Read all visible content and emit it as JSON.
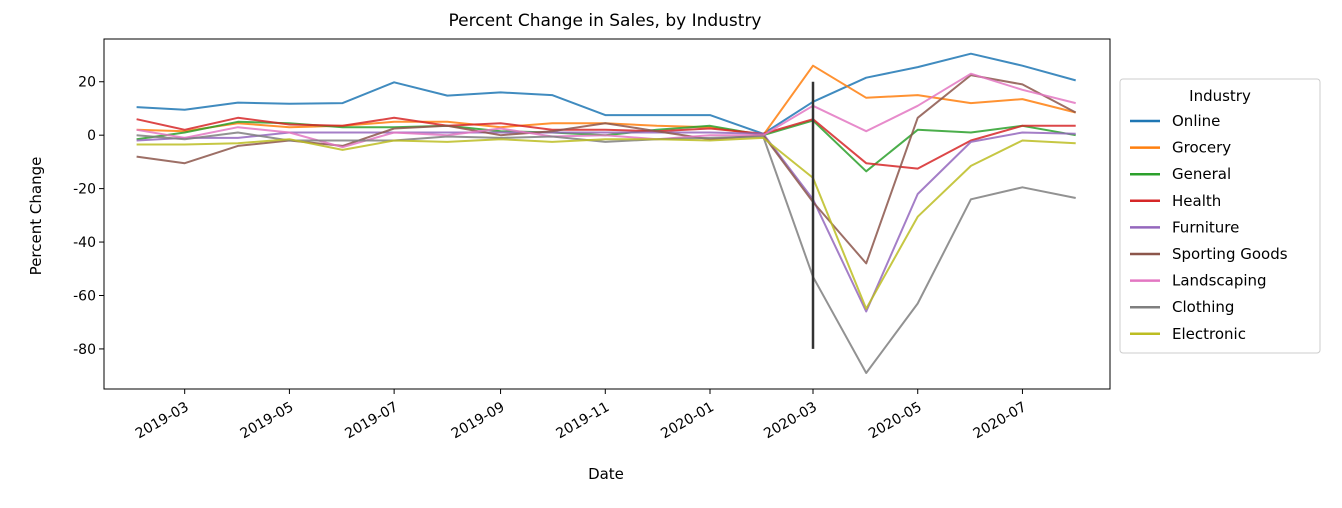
{
  "chart_data": {
    "type": "line",
    "title": "Percent Change in Sales, by Industry",
    "xlabel": "Date",
    "ylabel": "Percent Change",
    "x": [
      "2019-02-01",
      "2019-03-01",
      "2019-04-01",
      "2019-05-01",
      "2019-06-01",
      "2019-07-01",
      "2019-08-01",
      "2019-09-01",
      "2019-10-01",
      "2019-11-01",
      "2019-12-01",
      "2020-01-01",
      "2020-02-01",
      "2020-03-01",
      "2020-04-01",
      "2020-05-01",
      "2020-06-01",
      "2020-07-01",
      "2020-08-01"
    ],
    "xlim": [
      "2019-01-13",
      "2020-08-21"
    ],
    "ylim": [
      -95,
      36
    ],
    "xticks": [
      "2019-03",
      "2019-05",
      "2019-07",
      "2019-09",
      "2019-11",
      "2020-01",
      "2020-03",
      "2020-05",
      "2020-07"
    ],
    "yticks": [
      20,
      0,
      -20,
      -40,
      -60,
      -80
    ],
    "grid": false,
    "legend": {
      "title": "Industry",
      "placement": "right"
    },
    "vline": {
      "x": "2020-03-01",
      "y_range": [
        -80,
        20
      ],
      "color": "#333333"
    },
    "series": [
      {
        "name": "Online",
        "color": "#1f77b4",
        "values": [
          10.5,
          9.5,
          12.2,
          11.8,
          12,
          19.8,
          14.8,
          16,
          15,
          7.5,
          7.5,
          7.5,
          0.5,
          12.5,
          21.5,
          25.5,
          30.5,
          26,
          20.5
        ]
      },
      {
        "name": "Grocery",
        "color": "#ff7f0e",
        "values": [
          2,
          1.5,
          4.5,
          3,
          3.5,
          5,
          5,
          3,
          4.5,
          4.5,
          3.5,
          3,
          0,
          26,
          14,
          15,
          12,
          13.5,
          8.5
        ]
      },
      {
        "name": "General",
        "color": "#2ca02c",
        "values": [
          -1.5,
          1,
          5,
          4.5,
          3,
          3,
          3.5,
          1.5,
          1,
          0,
          2,
          3.5,
          0,
          5.5,
          -13.5,
          2,
          1,
          3.5,
          0
        ]
      },
      {
        "name": "Health",
        "color": "#d62728",
        "values": [
          6,
          2,
          6.5,
          4,
          3.5,
          6.5,
          3.5,
          4.5,
          2,
          2,
          1.5,
          2.5,
          0.5,
          6,
          -10.5,
          -12.5,
          -2,
          3.5,
          3.5
        ]
      },
      {
        "name": "Furniture",
        "color": "#9467bd",
        "values": [
          -2,
          -1,
          -1,
          1,
          1,
          1,
          1,
          1,
          1,
          1,
          1,
          1,
          0.5,
          -24,
          -66,
          -22,
          -2.5,
          1,
          0.5
        ]
      },
      {
        "name": "Sporting Goods",
        "color": "#8c564b",
        "values": [
          -8,
          -10.5,
          -4,
          -2,
          -4,
          2.5,
          3.5,
          0,
          1.5,
          4.5,
          1.5,
          -1.5,
          0,
          -25,
          -48,
          6.5,
          22.5,
          19,
          8.5
        ]
      },
      {
        "name": "Landscaping",
        "color": "#e377c2",
        "values": [
          2,
          -1,
          3,
          1,
          -4.5,
          1,
          0,
          2.5,
          -0.5,
          0,
          -1.5,
          0,
          0,
          11,
          1.5,
          11,
          23,
          17,
          12
        ]
      },
      {
        "name": "Clothing",
        "color": "#7f7f7f",
        "values": [
          0,
          -1.5,
          1,
          -2,
          -2,
          -2,
          -0.5,
          -1,
          -0.5,
          -2.5,
          -1.5,
          -1,
          -0.5,
          -53,
          -89,
          -63,
          -24,
          -19.5,
          -23.5
        ]
      },
      {
        "name": "Electronic",
        "color": "#bcbd22",
        "values": [
          -3.5,
          -3.5,
          -3,
          -1.5,
          -5.5,
          -2,
          -2.5,
          -1.5,
          -2.5,
          -1.5,
          -1.5,
          -2,
          -1,
          -16,
          -65,
          -30.5,
          -11.5,
          -2,
          -3
        ]
      }
    ]
  }
}
